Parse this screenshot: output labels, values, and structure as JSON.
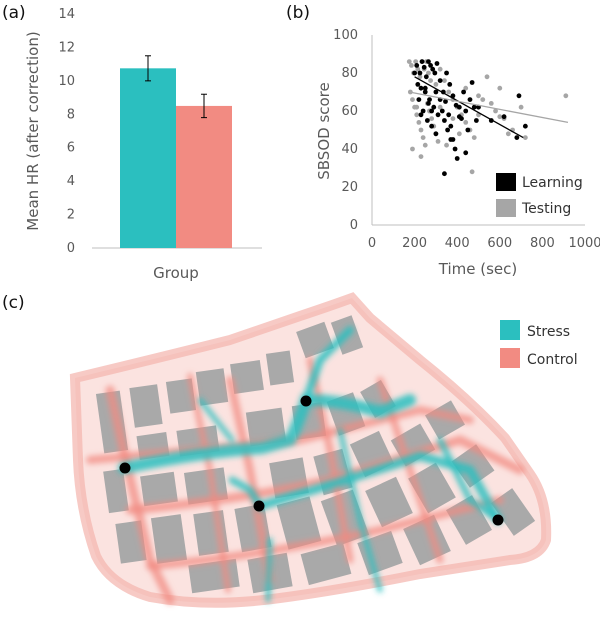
{
  "panels": {
    "a": "(a)",
    "b": "(b)",
    "c": "(c)"
  },
  "chart_data": [
    {
      "type": "bar",
      "categories": [
        "Stress",
        "Control"
      ],
      "values": [
        10.75,
        8.5
      ],
      "errors": [
        0.75,
        0.7
      ],
      "colors": [
        "#2bbfbf",
        "#f28b82"
      ],
      "xlabel": "Group",
      "ylabel": "Mean HR (after correction)",
      "ylim": [
        0,
        14
      ],
      "yticks": [
        "0",
        "2",
        "4",
        "6",
        "8",
        "10",
        "12",
        "14"
      ],
      "legend": "none",
      "grid": false
    },
    {
      "type": "scatter",
      "xlabel": "Time (sec)",
      "ylabel": "SBSOD score",
      "xlim": [
        0,
        1000
      ],
      "ylim": [
        0,
        100
      ],
      "xticks": [
        "0",
        "200",
        "400",
        "600",
        "800",
        "1000"
      ],
      "yticks": [
        "0",
        "20",
        "40",
        "60",
        "80",
        "100"
      ],
      "legend_position": "bottom-right",
      "grid": false,
      "series": [
        {
          "name": "Learning",
          "color": "#000000",
          "trend": [
            [
              200,
              78
            ],
            [
              710,
              46
            ]
          ],
          "points": [
            [
              210,
              84
            ],
            [
              225,
              80
            ],
            [
              235,
              86
            ],
            [
              245,
              83
            ],
            [
              255,
              78
            ],
            [
              265,
              86
            ],
            [
              275,
              84
            ],
            [
              285,
              82
            ],
            [
              295,
              80
            ],
            [
              305,
              85
            ],
            [
              230,
              72
            ],
            [
              250,
              70
            ],
            [
              270,
              66
            ],
            [
              290,
              62
            ],
            [
              310,
              58
            ],
            [
              240,
              60
            ],
            [
              260,
              55
            ],
            [
              280,
              52
            ],
            [
              300,
              48
            ],
            [
              320,
              76
            ],
            [
              335,
              70
            ],
            [
              345,
              65
            ],
            [
              360,
              58
            ],
            [
              370,
              52
            ],
            [
              380,
              45
            ],
            [
              390,
              40
            ],
            [
              400,
              35
            ],
            [
              410,
              62
            ],
            [
              420,
              56
            ],
            [
              430,
              70
            ],
            [
              440,
              60
            ],
            [
              450,
              50
            ],
            [
              460,
              66
            ],
            [
              470,
              75
            ],
            [
              480,
              62
            ],
            [
              490,
              55
            ],
            [
              350,
              80
            ],
            [
              365,
              74
            ],
            [
              380,
              68
            ],
            [
              395,
              63
            ],
            [
              410,
              57
            ],
            [
              330,
              60
            ],
            [
              340,
              55
            ],
            [
              355,
              50
            ],
            [
              370,
              45
            ],
            [
              250,
              72
            ],
            [
              265,
              64
            ],
            [
              280,
              60
            ],
            [
              300,
              70
            ],
            [
              320,
              66
            ],
            [
              200,
              80
            ],
            [
              215,
              74
            ],
            [
              220,
              66
            ],
            [
              230,
              58
            ],
            [
              340,
              27
            ],
            [
              440,
              38
            ],
            [
              500,
              62
            ],
            [
              560,
              55
            ],
            [
              620,
              57
            ],
            [
              690,
              68
            ],
            [
              720,
              52
            ],
            [
              680,
              46
            ]
          ]
        },
        {
          "name": "Testing",
          "color": "#a6a6a6",
          "trend": [
            [
              175,
              70
            ],
            [
              920,
              54
            ]
          ],
          "points": [
            [
              175,
              86
            ],
            [
              185,
              84
            ],
            [
              195,
              80
            ],
            [
              205,
              86
            ],
            [
              215,
              82
            ],
            [
              225,
              78
            ],
            [
              235,
              86
            ],
            [
              245,
              82
            ],
            [
              255,
              86
            ],
            [
              265,
              80
            ],
            [
              275,
              76
            ],
            [
              180,
              70
            ],
            [
              190,
              66
            ],
            [
              200,
              62
            ],
            [
              210,
              58
            ],
            [
              220,
              54
            ],
            [
              230,
              50
            ],
            [
              240,
              46
            ],
            [
              250,
              42
            ],
            [
              260,
              64
            ],
            [
              270,
              60
            ],
            [
              280,
              56
            ],
            [
              290,
              52
            ],
            [
              300,
              48
            ],
            [
              310,
              44
            ],
            [
              190,
              40
            ],
            [
              230,
              36
            ],
            [
              270,
              60
            ],
            [
              320,
              82
            ],
            [
              340,
              76
            ],
            [
              360,
              70
            ],
            [
              380,
              66
            ],
            [
              400,
              62
            ],
            [
              420,
              58
            ],
            [
              440,
              54
            ],
            [
              460,
              50
            ],
            [
              480,
              46
            ],
            [
              500,
              68
            ],
            [
              520,
              66
            ],
            [
              540,
              78
            ],
            [
              560,
              64
            ],
            [
              580,
              60
            ],
            [
              600,
              57
            ],
            [
              620,
              56
            ],
            [
              640,
              48
            ],
            [
              660,
              50
            ],
            [
              600,
              72
            ],
            [
              700,
              62
            ],
            [
              720,
              46
            ],
            [
              910,
              68
            ],
            [
              380,
              56
            ],
            [
              320,
              62
            ],
            [
              350,
              42
            ],
            [
              470,
              28
            ],
            [
              500,
              58
            ],
            [
              440,
              72
            ],
            [
              410,
              48
            ],
            [
              300,
              74
            ],
            [
              250,
              72
            ],
            [
              210,
              62
            ]
          ]
        }
      ]
    },
    {
      "type": "map",
      "legend": [
        {
          "label": "Stress",
          "color": "#2bbfbf"
        },
        {
          "label": "Control",
          "color": "#f28b82"
        }
      ]
    }
  ]
}
